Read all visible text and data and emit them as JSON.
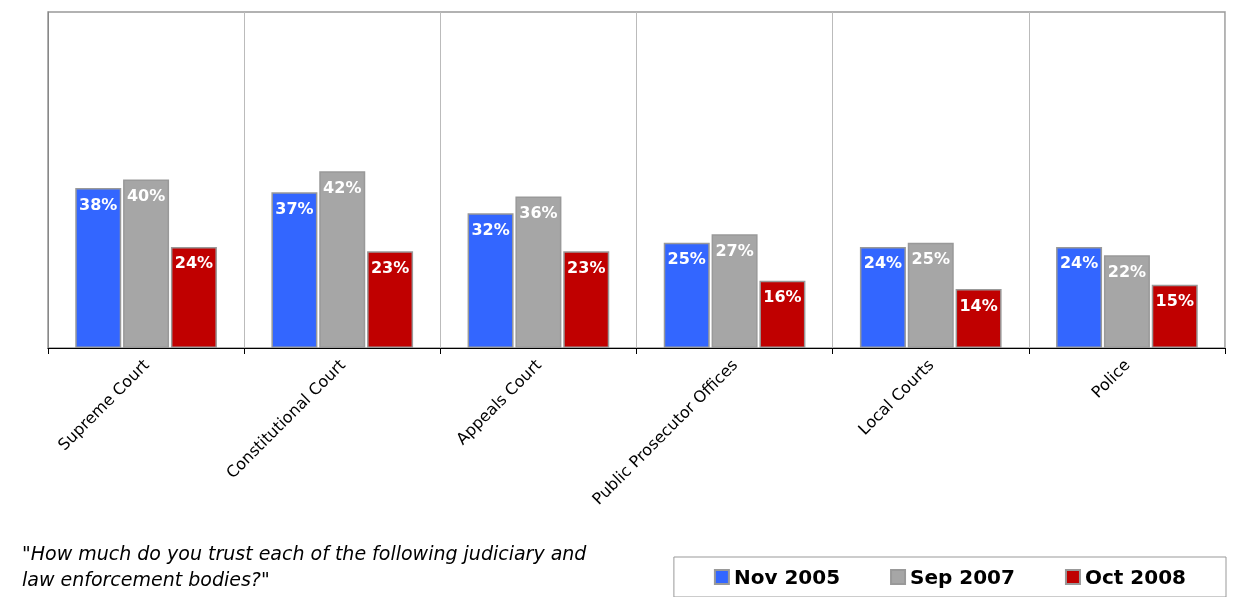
{
  "chart_data": {
    "type": "bar",
    "categories": [
      "Supreme Court",
      "Constitutional Court",
      "Appeals Court",
      "Public Prosecutor Offices",
      "Local Courts",
      "Police"
    ],
    "series": [
      {
        "name": "Nov 2005",
        "color": "#3366ff",
        "values": [
          38,
          37,
          32,
          25,
          24,
          24
        ],
        "value_labels": [
          "38%",
          "37%",
          "32%",
          "25%",
          "24%",
          "24%"
        ]
      },
      {
        "name": "Sep 2007",
        "color": "#a6a6a6",
        "values": [
          40,
          42,
          36,
          27,
          25,
          22
        ],
        "value_labels": [
          "40%",
          "42%",
          "36%",
          "27%",
          "25%",
          "22%"
        ]
      },
      {
        "name": "Oct 2008",
        "color": "#c00000",
        "values": [
          24,
          23,
          23,
          16,
          14,
          15
        ],
        "value_labels": [
          "24%",
          "23%",
          "23%",
          "16%",
          "14%",
          "15%"
        ]
      }
    ],
    "tick_labels": "x",
    "grid": "x",
    "legend": "bottom right",
    "annotations": [
      "\"How much do you trust each of the following judiciary and law enforcement bodies?\""
    ]
  }
}
